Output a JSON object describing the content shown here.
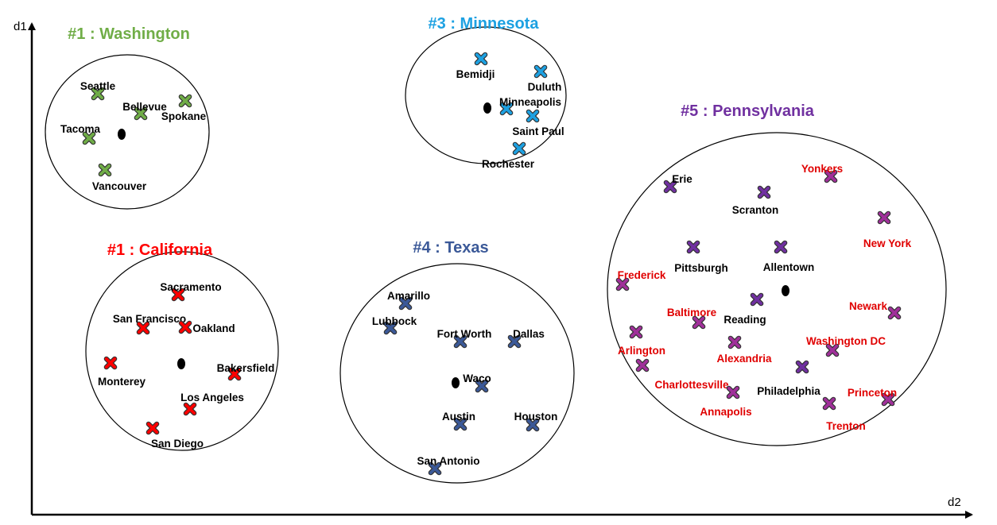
{
  "axes": {
    "y_label": "d1",
    "x_label": "d2"
  },
  "colors": {
    "washington": "#70AD47",
    "minnesota": "#1DA1E2",
    "california": "#FF0000",
    "texas": "#3B5998",
    "pennsylvania": "#7030A0",
    "label_default": "#000000",
    "label_outlier": "#E00000",
    "outlier_marker": "#A0309A",
    "centroid": "#000000"
  },
  "clusters": [
    {
      "key": "washington",
      "title": "#1 : Washington",
      "points": [
        {
          "name": "Seattle"
        },
        {
          "name": "Bellevue"
        },
        {
          "name": "Spokane"
        },
        {
          "name": "Tacoma"
        },
        {
          "name": "Vancouver"
        }
      ]
    },
    {
      "key": "minnesota",
      "title": "#3 : Minnesota",
      "points": [
        {
          "name": "Bemidji"
        },
        {
          "name": "Duluth"
        },
        {
          "name": "Minneapolis"
        },
        {
          "name": "Saint Paul"
        },
        {
          "name": "Rochester"
        }
      ]
    },
    {
      "key": "california",
      "title": "#1 : California",
      "points": [
        {
          "name": "Sacramento"
        },
        {
          "name": "San Francisco"
        },
        {
          "name": "Oakland"
        },
        {
          "name": "Monterey"
        },
        {
          "name": "Bakersfield"
        },
        {
          "name": "Los Angeles"
        },
        {
          "name": "San Diego"
        }
      ]
    },
    {
      "key": "texas",
      "title": "#4 : Texas",
      "points": [
        {
          "name": "Amarillo"
        },
        {
          "name": "Lubbock"
        },
        {
          "name": "Fort Worth"
        },
        {
          "name": "Dallas"
        },
        {
          "name": "Waco"
        },
        {
          "name": "Austin"
        },
        {
          "name": "Houston"
        },
        {
          "name": "San Antonio"
        }
      ]
    },
    {
      "key": "pennsylvania",
      "title": "#5 : Pennsylvania",
      "points": [
        {
          "name": "Erie"
        },
        {
          "name": "Scranton"
        },
        {
          "name": "Yonkers",
          "outlier": true
        },
        {
          "name": "New York",
          "outlier": true
        },
        {
          "name": "Pittsburgh"
        },
        {
          "name": "Allentown"
        },
        {
          "name": "Frederick",
          "outlier": true
        },
        {
          "name": "Reading"
        },
        {
          "name": "Baltimore",
          "outlier": true
        },
        {
          "name": "Newark",
          "outlier": true
        },
        {
          "name": "Arlington",
          "outlier": true
        },
        {
          "name": "Alexandria",
          "outlier": true
        },
        {
          "name": "Washington DC",
          "outlier": true
        },
        {
          "name": "Charlottesville",
          "outlier": true
        },
        {
          "name": "Philadelphia"
        },
        {
          "name": "Annapolis",
          "outlier": true
        },
        {
          "name": "Princeton",
          "outlier": true
        },
        {
          "name": "Trenton",
          "outlier": true
        }
      ]
    }
  ]
}
